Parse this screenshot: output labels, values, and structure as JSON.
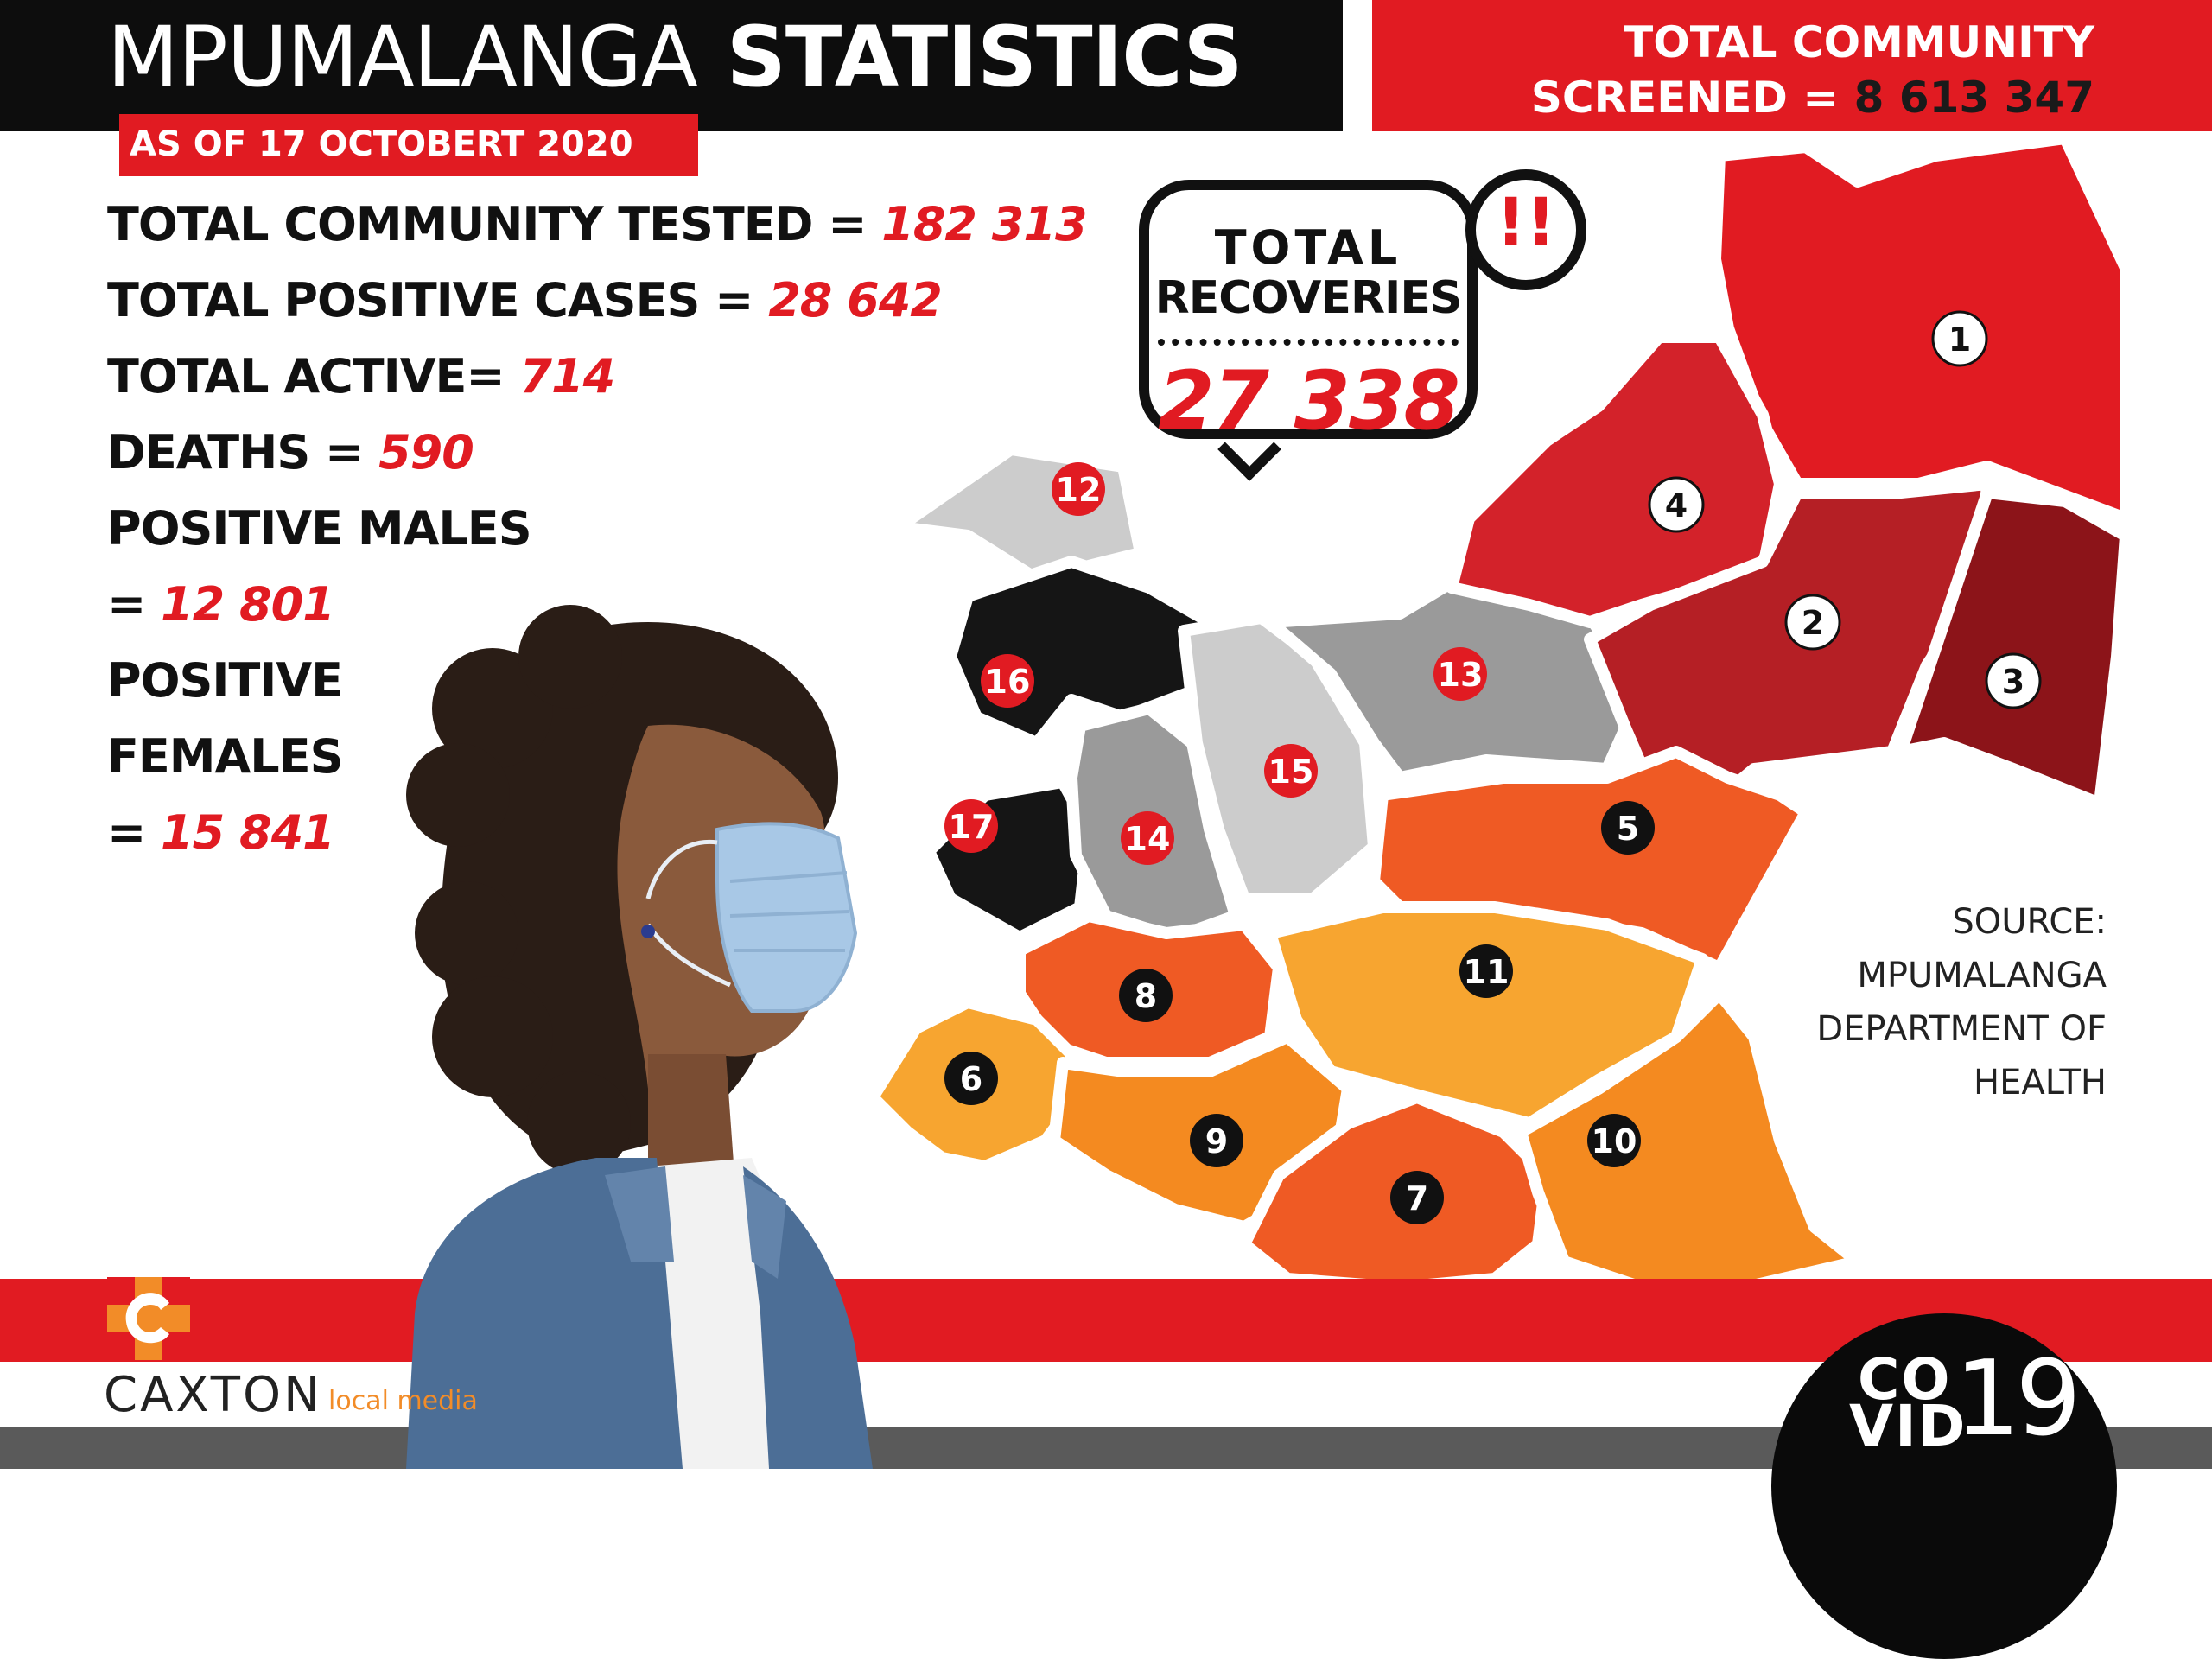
{
  "header": {
    "title_light": "MPUMALANGA",
    "title_bold": "STATISTICS",
    "date": "AS OF 17 OCTOBERT 2020"
  },
  "screened": {
    "line1": "TOTAL  COMMUNITY",
    "line2_label": "SCREENED =",
    "line2_value": "8 613 347"
  },
  "stats": {
    "tested_label": "TOTAL COMMUNITY TESTED = ",
    "tested_value": "182 313",
    "positive_label": "TOTAL POSITIVE CASES = ",
    "positive_value": "28 642",
    "active_label": "TOTAL ACTIVE= ",
    "active_value": "714",
    "deaths_label": "DEATHS = ",
    "deaths_value": "590",
    "males_label": "POSITIVE MALES",
    "males_prefix": "= ",
    "males_value": "12 801",
    "females_label1": "POSITIVE",
    "females_label2": "FEMALES",
    "females_prefix": "= ",
    "females_value": "15 841"
  },
  "recoveries": {
    "line1": "TOTAL",
    "line2": "RECOVERIES",
    "value": "27 338",
    "alert": "!!"
  },
  "map": {
    "districts": [
      "1",
      "2",
      "3",
      "4",
      "5",
      "6",
      "7",
      "8",
      "9",
      "10",
      "11",
      "12",
      "13",
      "14",
      "15",
      "16",
      "17"
    ],
    "colors": {
      "red": "#e11b22",
      "dark_red": "#b51f25",
      "maroon": "#8c1419",
      "orange": "#ef5a24",
      "light_orange": "#f7a530",
      "amber": "#f48a20",
      "gray": "#9a9a9a",
      "light_gray": "#cccccc",
      "black": "#151515"
    }
  },
  "source": {
    "line1": "SOURCE:",
    "line2": "MPUMALANGA",
    "line3": "DEPARTMENT OF",
    "line4": "HEALTH"
  },
  "logo": {
    "name": "CAXTON",
    "tagline": "local media"
  },
  "badge": {
    "co": "CO",
    "vid": "VID",
    "num": "19"
  }
}
